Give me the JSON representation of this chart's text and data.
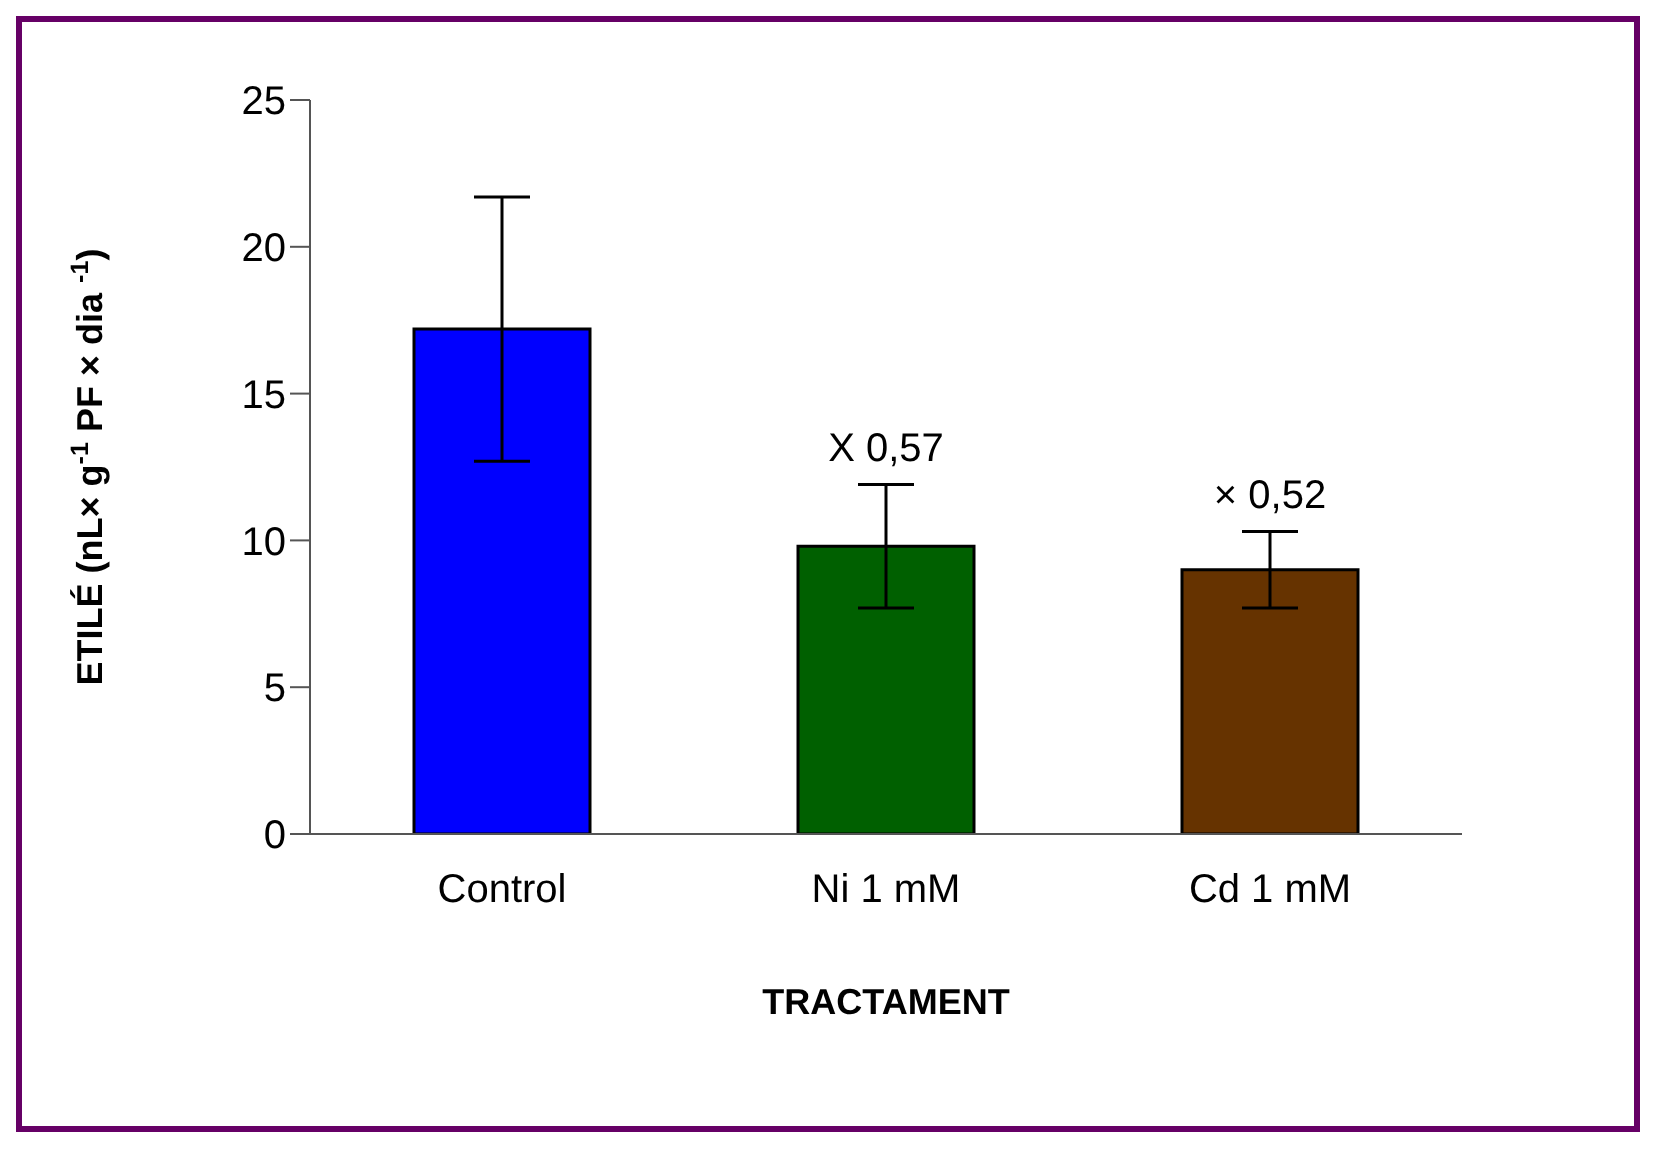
{
  "chart_data": {
    "type": "bar",
    "xlabel": "TRACTAMENT",
    "ylabel": "ETILÉ (nL× g$^{-1}$ PF × dia $^{-1}$)",
    "categories": [
      "Control",
      "Ni 1 mM",
      "Cd 1 mM"
    ],
    "values": [
      17.2,
      9.8,
      9.0
    ],
    "colors": [
      "#0000ff",
      "#006000",
      "#663300"
    ],
    "errors": [
      4.5,
      2.1,
      1.3
    ],
    "ylim": [
      0,
      25
    ],
    "yticks": [
      0,
      5,
      10,
      15,
      20,
      25
    ],
    "grid": false,
    "legend": false,
    "annotations": [
      "X 0,57",
      "× 0,52"
    ]
  }
}
